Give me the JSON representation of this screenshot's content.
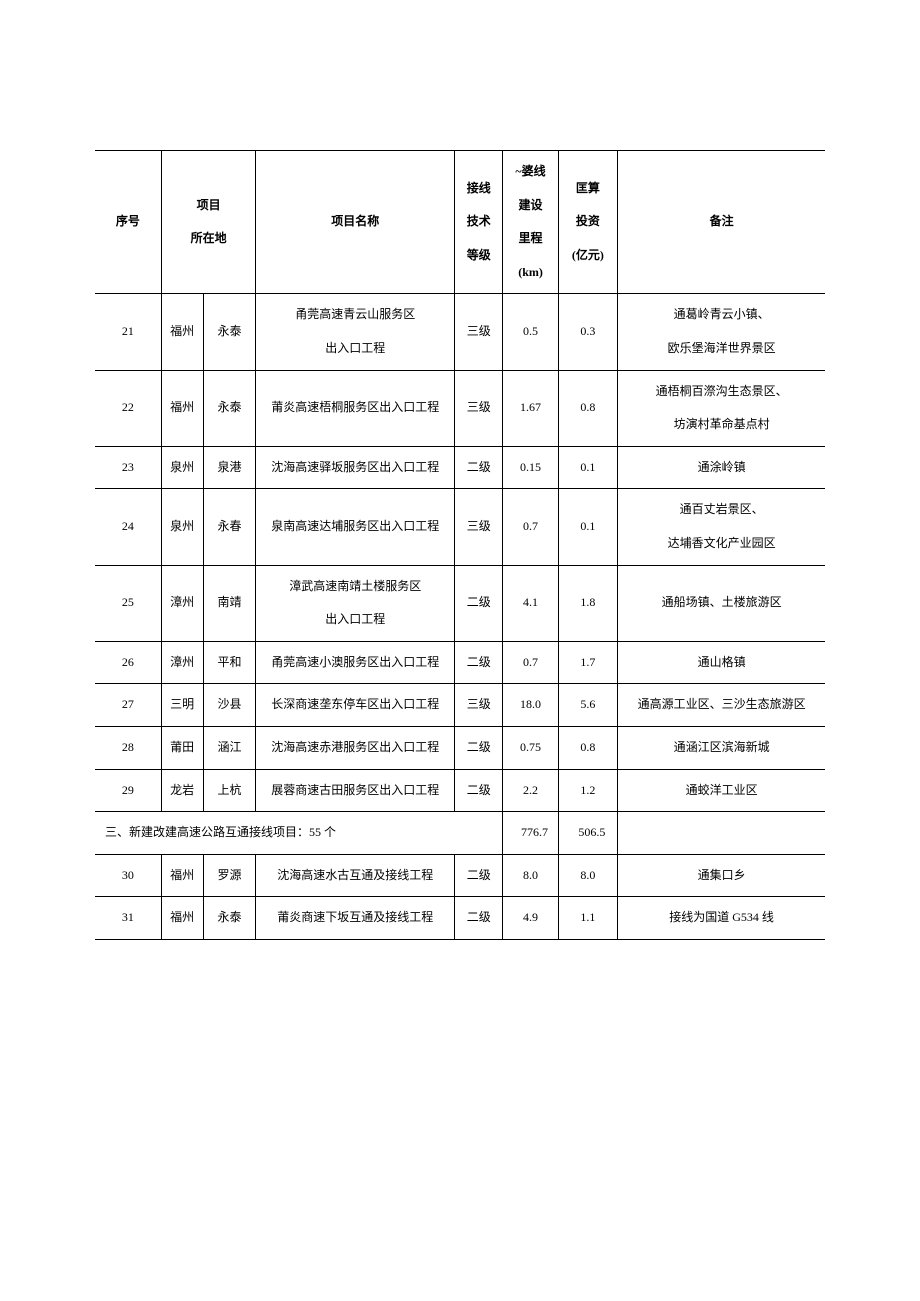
{
  "header": {
    "seq": "序号",
    "loc": "项目\n所在地",
    "name": "项目名称",
    "lvl": "接线\n技术\n等级",
    "km": "~婆线\n建设\n里程\n(km)",
    "inv": "匡算\n投资\n(亿元)",
    "note": "备注"
  },
  "rows": [
    {
      "seq": "21",
      "city": "福州",
      "cty": "永泰",
      "name": "甬莞高速青云山服务区\n出入口工程",
      "lvl": "三级",
      "km": "0.5",
      "inv": "0.3",
      "note": "通葛岭青云小镇、\n欧乐堡海洋世界景区"
    },
    {
      "seq": "22",
      "city": "福州",
      "cty": "永泰",
      "name": "莆炎高速梧桐服务区出入口工程",
      "lvl": "三级",
      "km": "1.67",
      "inv": "0.8",
      "note": "通梧桐百漈沟生态景区、\n坊演村革命基点村"
    },
    {
      "seq": "23",
      "city": "泉州",
      "cty": "泉港",
      "name": "沈海高速驿坂服务区出入口工程",
      "lvl": "二级",
      "km": "0.15",
      "inv": "0.1",
      "note": "通涂岭镇"
    },
    {
      "seq": "24",
      "city": "泉州",
      "cty": "永春",
      "name": "泉南高速达埔服务区出入口工程",
      "lvl": "三级",
      "km": "0.7",
      "inv": "0.1",
      "note": "通百丈岩景区、\n达埔香文化产业园区"
    },
    {
      "seq": "25",
      "city": "漳州",
      "cty": "南靖",
      "name": "漳武高速南靖土楼服务区\n出入口工程",
      "lvl": "二级",
      "km": "4.1",
      "inv": "1.8",
      "note": "通船场镇、土楼旅游区"
    },
    {
      "seq": "26",
      "city": "漳州",
      "cty": "平和",
      "name": "甬莞高速小澳服务区出入口工程",
      "lvl": "二级",
      "km": "0.7",
      "inv": "1.7",
      "note": "通山格镇"
    },
    {
      "seq": "27",
      "city": "三明",
      "cty": "沙县",
      "name": "长深商速垄东停车区出入口工程",
      "lvl": "三级",
      "km": "18.0",
      "inv": "5.6",
      "note": "通高源工业区、三沙生态旅游区"
    },
    {
      "seq": "28",
      "city": "莆田",
      "cty": "涵江",
      "name": "沈海高速赤港服务区出入口工程",
      "lvl": "二级",
      "km": "0.75",
      "inv": "0.8",
      "note": "通涵江区滨海新城"
    },
    {
      "seq": "29",
      "city": "龙岩",
      "cty": "上杭",
      "name": "展蓉商速古田服务区出入口工程",
      "lvl": "二级",
      "km": "2.2",
      "inv": "1.2",
      "note": "通蛟洋工业区"
    }
  ],
  "section": {
    "title": "三、新建改建高速公路互通接线项目：55 个",
    "km": "776.7",
    "inv": "506.5"
  },
  "rows2": [
    {
      "seq": "30",
      "city": "福州",
      "cty": "罗源",
      "name": "沈海高速水古互通及接线工程",
      "lvl": "二级",
      "km": "8.0",
      "inv": "8.0",
      "note": "通集口乡"
    },
    {
      "seq": "31",
      "city": "福州",
      "cty": "永泰",
      "name": "莆炎商速下坂互通及接线工程",
      "lvl": "二级",
      "km": "4.9",
      "inv": "1.1",
      "note": "接线为国道 G534 线"
    }
  ],
  "colors": {
    "border": "#000000",
    "text": "#000000",
    "bg": "#ffffff"
  }
}
